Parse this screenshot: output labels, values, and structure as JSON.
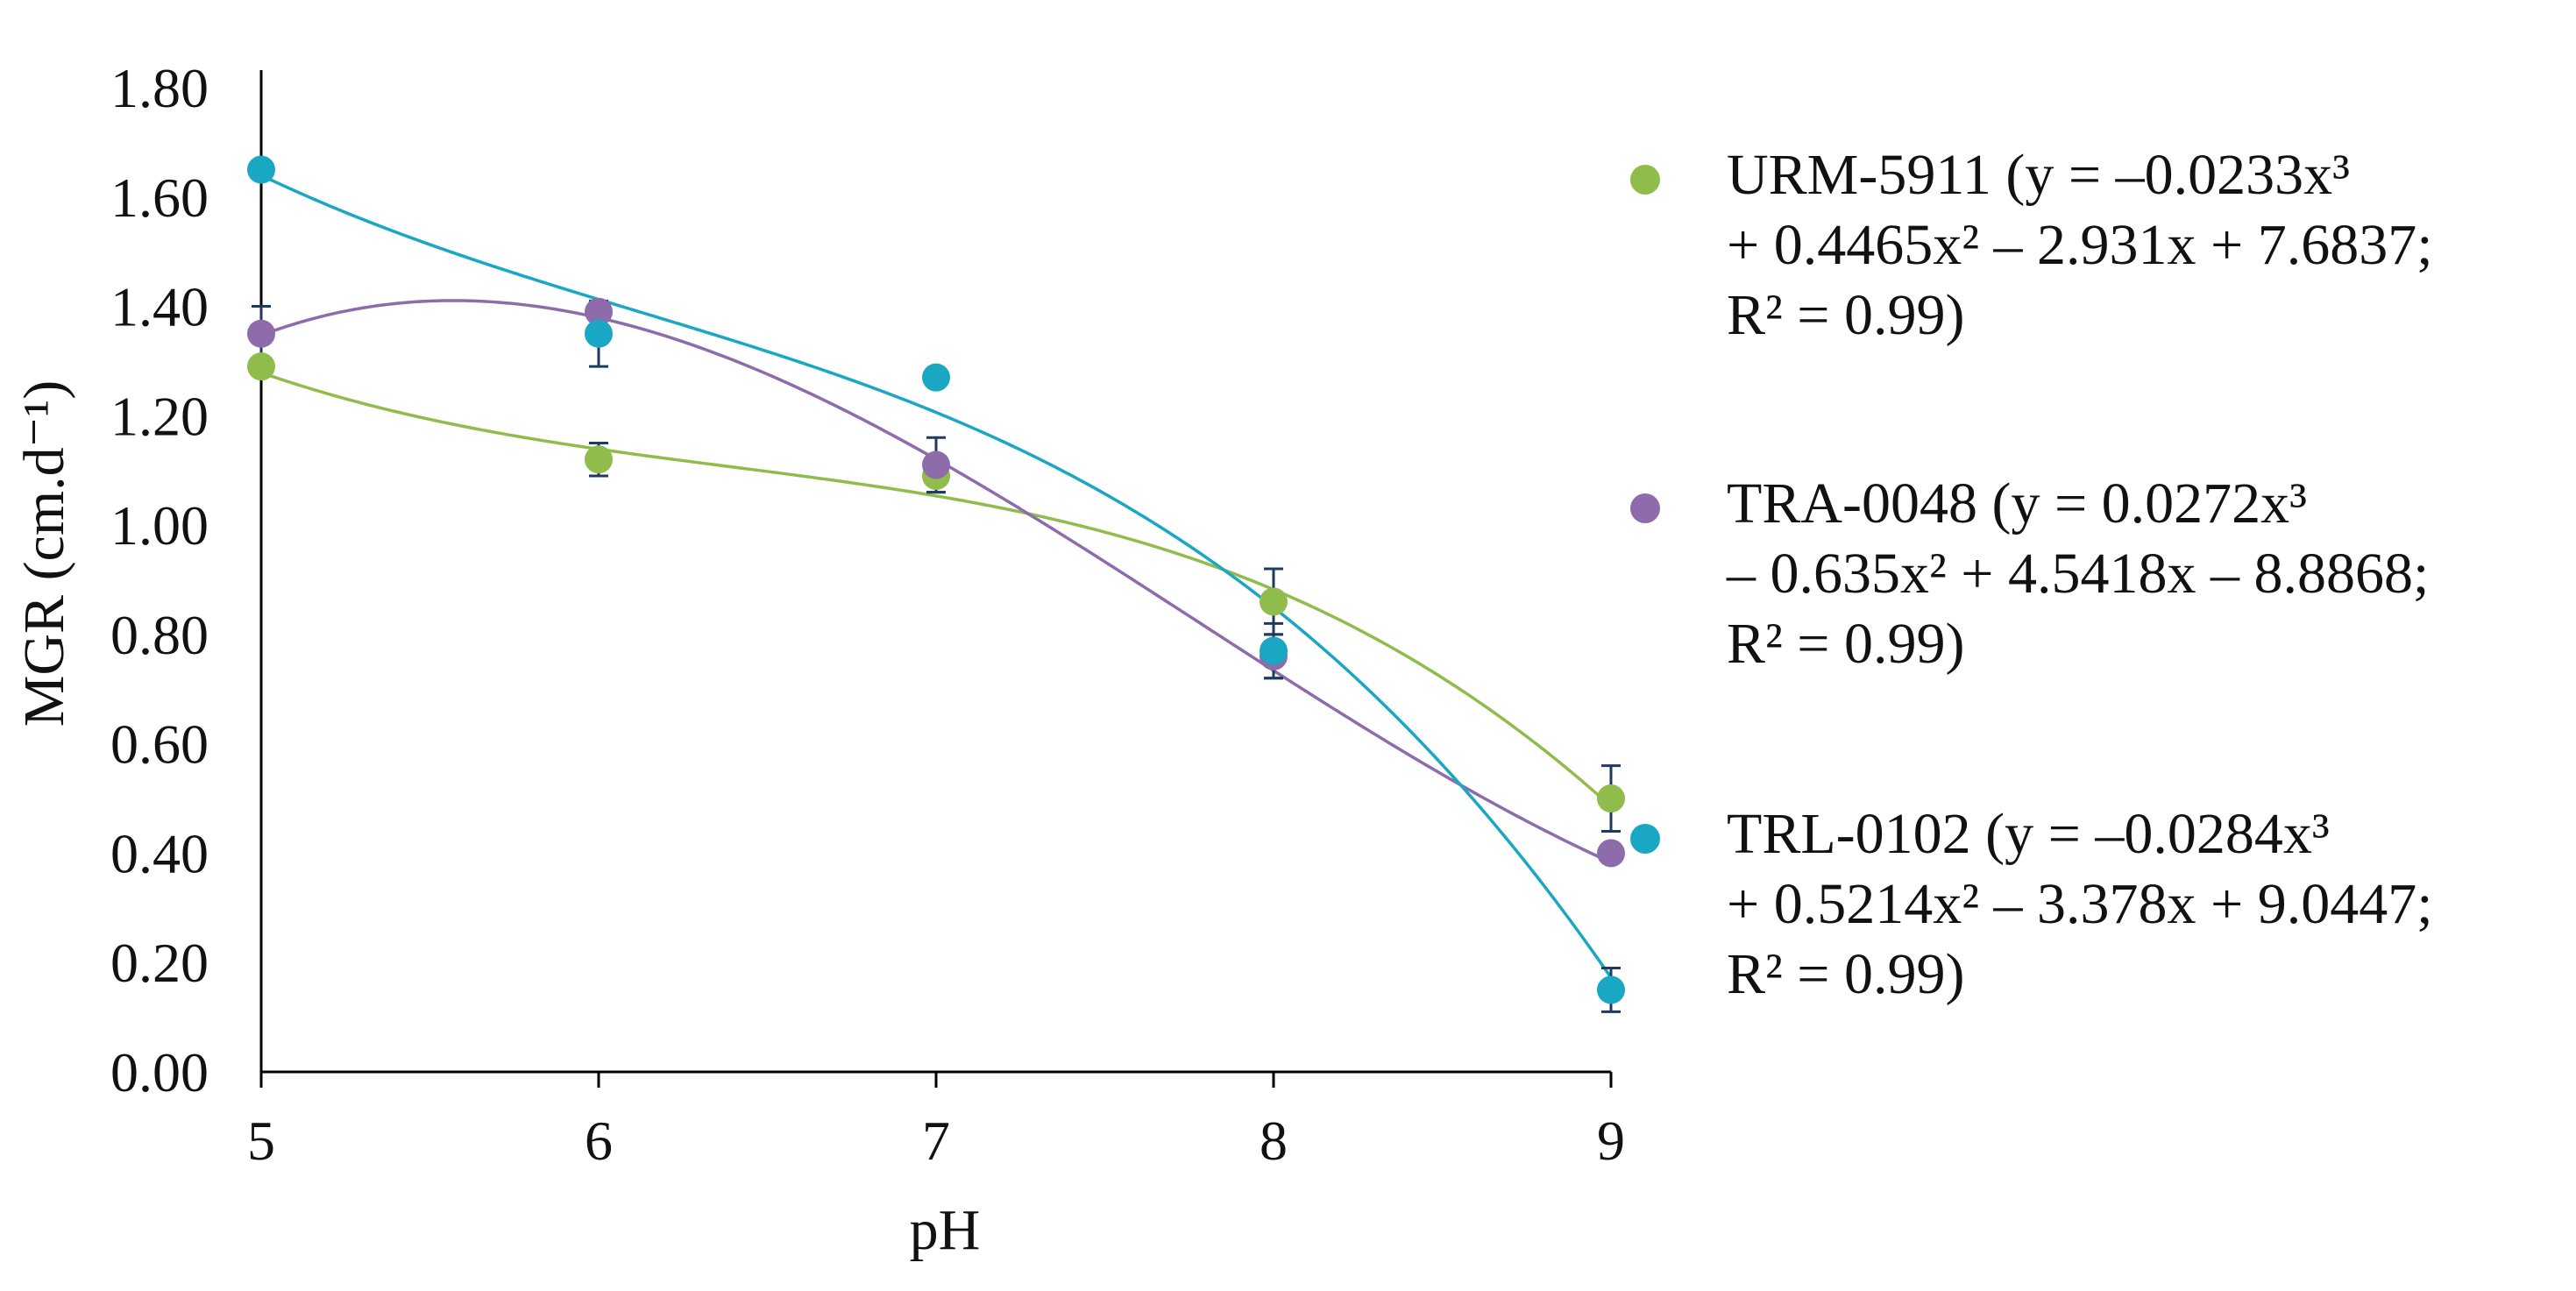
{
  "chart_data": {
    "type": "scatter",
    "title": "",
    "xlabel": "pH",
    "ylabel": "MGR (cm.d⁻¹)",
    "xlim": [
      5,
      9
    ],
    "ylim": [
      0,
      1.8
    ],
    "x_ticks": [
      "5",
      "6",
      "7",
      "8",
      "9"
    ],
    "y_ticks": [
      "0.00",
      "0.20",
      "0.40",
      "0.60",
      "0.80",
      "1.00",
      "1.20",
      "1.40",
      "1.60",
      "1.80"
    ],
    "x": [
      5,
      6,
      7,
      8,
      9
    ],
    "legend_position": "right",
    "series": [
      {
        "name": "URM-5911",
        "color": "#8fbc4a",
        "values": [
          1.29,
          1.12,
          1.09,
          0.86,
          0.5
        ],
        "errors": [
          0.0,
          0.03,
          0.03,
          0.06,
          0.06
        ],
        "fit_coefficients": [
          -0.0233,
          0.4465,
          -2.931,
          7.6837
        ],
        "legend_lines": [
          "URM-5911 (y = –0.0233x³",
          "+ 0.4465x² – 2.931x + 7.6837;",
          "R² = 0.99)"
        ]
      },
      {
        "name": "TRA-0048",
        "color": "#8e6cac",
        "values": [
          1.35,
          1.39,
          1.11,
          0.76,
          0.4
        ],
        "errors": [
          0.05,
          0.0,
          0.05,
          0.04,
          0.0
        ],
        "fit_coefficients": [
          0.0272,
          -0.635,
          4.5418,
          -8.8868
        ],
        "legend_lines": [
          "TRA-0048 (y = 0.0272x³",
          "– 0.635x² + 4.5418x – 8.8868;",
          "R² = 0.99)"
        ]
      },
      {
        "name": "TRL-0102",
        "color": "#1aa7c4",
        "values": [
          1.65,
          1.35,
          1.27,
          0.77,
          0.15
        ],
        "errors": [
          0.0,
          0.06,
          0.0,
          0.05,
          0.04
        ],
        "fit_coefficients": [
          -0.0284,
          0.5214,
          -3.378,
          9.0447
        ],
        "legend_lines": [
          "TRL-0102 (y = –0.0284x³",
          "+ 0.5214x² – 3.378x + 9.0447;",
          "R² = 0.99)"
        ]
      }
    ]
  }
}
